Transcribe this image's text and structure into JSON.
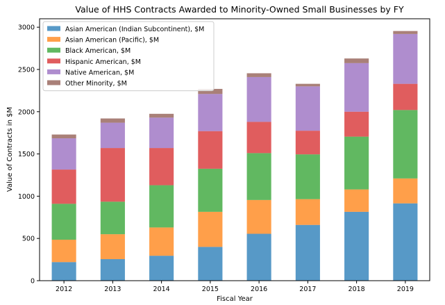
{
  "chart_data": {
    "type": "bar",
    "stacked": true,
    "title": "Value of HHS Contracts Awarded to Minority-Owned Small Businesses by FY",
    "xlabel": "Fiscal Year",
    "ylabel": "Value of Contracts in $M",
    "ylim": [
      0,
      3100
    ],
    "yticks": [
      0,
      500,
      1000,
      1500,
      2000,
      2500,
      3000
    ],
    "categories": [
      "2012",
      "2013",
      "2014",
      "2015",
      "2016",
      "2017",
      "2018",
      "2019"
    ],
    "legend_position": "top-left",
    "grid": false,
    "series": [
      {
        "name": "Asian American (Indian Subcontinent), $M",
        "color": "#1f77b4",
        "values": [
          220,
          255,
          295,
          400,
          555,
          660,
          815,
          915
        ]
      },
      {
        "name": "Asian American (Pacific), $M",
        "color": "#ff7f0e",
        "values": [
          265,
          295,
          335,
          415,
          400,
          305,
          265,
          295
        ]
      },
      {
        "name": "Black American, $M",
        "color": "#2ca02c",
        "values": [
          425,
          385,
          500,
          510,
          555,
          530,
          625,
          810
        ]
      },
      {
        "name": "Hispanic American, $M",
        "color": "#d62728",
        "values": [
          405,
          635,
          440,
          445,
          370,
          280,
          295,
          310
        ]
      },
      {
        "name": "Native American, $M",
        "color": "#9467bd",
        "values": [
          370,
          300,
          360,
          440,
          530,
          525,
          575,
          590
        ]
      },
      {
        "name": "Other Minority, $M",
        "color": "#8c564b",
        "values": [
          45,
          50,
          45,
          60,
          45,
          30,
          55,
          35
        ]
      }
    ]
  }
}
